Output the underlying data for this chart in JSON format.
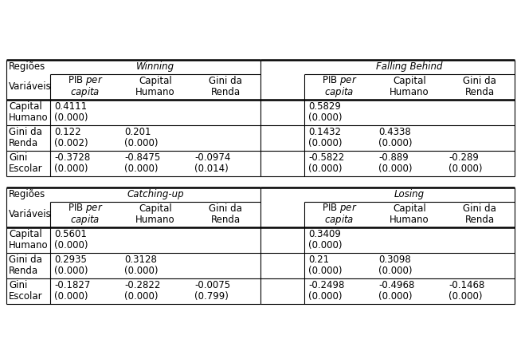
{
  "title": "",
  "bg_color": "#ffffff",
  "sections": [
    {
      "region_label": "Regiões",
      "group_label": "Winning",
      "group_label_italic": true,
      "sub_label": "Variáveis",
      "col_headers": [
        [
          "PIB per",
          "capita"
        ],
        [
          "Capital",
          "Humano"
        ],
        [
          "Gini da",
          "Renda"
        ]
      ],
      "rows": [
        {
          "row_label": [
            "Capital",
            "Humano"
          ],
          "values": [
            [
              "0.4111",
              "(0.000)"
            ],
            [
              "",
              ""
            ],
            [
              "",
              ""
            ]
          ]
        },
        {
          "row_label": [
            "Gini da",
            "Renda"
          ],
          "values": [
            [
              "0.122",
              "(0.002)"
            ],
            [
              "0.201",
              "(0.000)"
            ],
            [
              "",
              ""
            ]
          ]
        },
        {
          "row_label": [
            "Gini",
            "Escolar"
          ],
          "values": [
            [
              "-0.3728",
              "(0.000)"
            ],
            [
              "-0.8475",
              "(0.000)"
            ],
            [
              "-0.0974",
              "(0.014)"
            ]
          ]
        }
      ]
    },
    {
      "region_label": "Regiões",
      "group_label": "Falling Behind",
      "group_label_italic": true,
      "sub_label": "Variáveis",
      "col_headers": [
        [
          "PIB per",
          "capita"
        ],
        [
          "Capital",
          "Humano"
        ],
        [
          "Gini da",
          "Renda"
        ]
      ],
      "rows": [
        {
          "row_label": [
            "Capital",
            "Humano"
          ],
          "values": [
            [
              "0.5829",
              "(0.000)"
            ],
            [
              "",
              ""
            ],
            [
              "",
              ""
            ]
          ]
        },
        {
          "row_label": [
            "Gini da",
            "Renda"
          ],
          "values": [
            [
              "0.1432",
              "(0.000)"
            ],
            [
              "0.4338",
              "(0.000)"
            ],
            [
              "",
              ""
            ]
          ]
        },
        {
          "row_label": [
            "Gini",
            "Escolar"
          ],
          "values": [
            [
              "-0.5822",
              "(0.000)"
            ],
            [
              "-0.889",
              "(0.000)"
            ],
            [
              "-0.289",
              "(0.000)"
            ]
          ]
        }
      ]
    },
    {
      "region_label": "Regiões",
      "group_label": "Catching-up",
      "group_label_italic": true,
      "sub_label": "Variáveis",
      "col_headers": [
        [
          "PIB per",
          "capita"
        ],
        [
          "Capital",
          "Humano"
        ],
        [
          "Gini da",
          "Renda"
        ]
      ],
      "rows": [
        {
          "row_label": [
            "Capital",
            "Humano"
          ],
          "values": [
            [
              "0.5601",
              "(0.000)"
            ],
            [
              "",
              ""
            ],
            [
              "",
              ""
            ]
          ]
        },
        {
          "row_label": [
            "Gini da",
            "Renda"
          ],
          "values": [
            [
              "0.2935",
              "(0.000)"
            ],
            [
              "0.3128",
              "(0.000)"
            ],
            [
              "",
              ""
            ]
          ]
        },
        {
          "row_label": [
            "Gini",
            "Escolar"
          ],
          "values": [
            [
              "-0.1827",
              "(0.000)"
            ],
            [
              "-0.2822",
              "(0.000)"
            ],
            [
              "-0.0075",
              "(0.799)"
            ]
          ]
        }
      ]
    },
    {
      "region_label": "Regiões",
      "group_label": "Losing",
      "group_label_italic": true,
      "sub_label": "Variáveis",
      "col_headers": [
        [
          "PIB per",
          "capita"
        ],
        [
          "Capital",
          "Humano"
        ],
        [
          "Gini da",
          "Renda"
        ]
      ],
      "rows": [
        {
          "row_label": [
            "Capital",
            "Humano"
          ],
          "values": [
            [
              "0.3409",
              "(0.000)"
            ],
            [
              "",
              ""
            ],
            [
              "",
              ""
            ]
          ]
        },
        {
          "row_label": [
            "Gini da",
            "Renda"
          ],
          "values": [
            [
              "0.21",
              "(0.000)"
            ],
            [
              "0.3098",
              "(0.000)"
            ],
            [
              "",
              ""
            ]
          ]
        },
        {
          "row_label": [
            "Gini",
            "Escolar"
          ],
          "values": [
            [
              "-0.2498",
              "(0.000)"
            ],
            [
              "-0.4968",
              "(0.000)"
            ],
            [
              "-0.1468",
              "(0.000)"
            ]
          ]
        }
      ]
    }
  ]
}
